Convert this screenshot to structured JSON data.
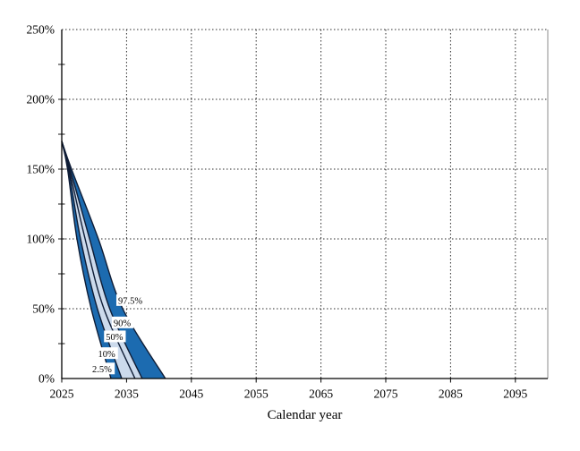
{
  "chart_data": {
    "type": "area",
    "subtype": "percentile-fan",
    "title": "",
    "xlabel": "Calendar year",
    "ylabel": "",
    "xlim": [
      2025,
      2100
    ],
    "ylim": [
      0,
      250
    ],
    "grid": "dotted",
    "legend_position": "none",
    "x_ticks": [
      2025,
      2035,
      2045,
      2055,
      2065,
      2075,
      2085,
      2095
    ],
    "x_tick_labels": [
      "2025",
      "2035",
      "2045",
      "2055",
      "2065",
      "2075",
      "2085",
      "2095"
    ],
    "y_ticks": [
      0,
      50,
      100,
      150,
      200,
      250
    ],
    "y_tick_labels": [
      "0%",
      "50%",
      "100%",
      "150%",
      "200%",
      "250%"
    ],
    "y_minor_tick_step": 25,
    "series": [
      {
        "name": "2.5%",
        "points": [
          [
            2025,
            170
          ],
          [
            2025.9,
            150
          ],
          [
            2027.35,
            100
          ],
          [
            2029.55,
            50
          ],
          [
            2032.6,
            0
          ]
        ],
        "label_at": [
          2029.7,
          7
        ]
      },
      {
        "name": "10%",
        "points": [
          [
            2025,
            170
          ],
          [
            2026.05,
            150
          ],
          [
            2027.9,
            100
          ],
          [
            2030.5,
            50
          ],
          [
            2034.25,
            0
          ]
        ],
        "label_at": [
          2030.6,
          18
        ]
      },
      {
        "name": "50%",
        "points": [
          [
            2025,
            170
          ],
          [
            2026.15,
            150
          ],
          [
            2028.6,
            100
          ],
          [
            2031.5,
            50
          ],
          [
            2036.3,
            0
          ]
        ],
        "label_at": [
          2031.8,
          30
        ]
      },
      {
        "name": "90%",
        "points": [
          [
            2025,
            170
          ],
          [
            2026.3,
            150
          ],
          [
            2029.3,
            100
          ],
          [
            2032.4,
            50
          ],
          [
            2037.4,
            0
          ]
        ],
        "label_at": [
          2033.0,
          40
        ]
      },
      {
        "name": "97.5%",
        "points": [
          [
            2025,
            170
          ],
          [
            2026.5,
            150
          ],
          [
            2030.65,
            100
          ],
          [
            2034.4,
            50
          ],
          [
            2041.0,
            0
          ]
        ],
        "label_at": [
          2033.7,
          56
        ]
      }
    ],
    "bands": [
      {
        "from": "2.5%",
        "to": "10%",
        "color_key": "dark"
      },
      {
        "from": "10%",
        "to": "90%",
        "color_key": "light"
      },
      {
        "from": "90%",
        "to": "97.5%",
        "color_key": "dark"
      }
    ],
    "colors": {
      "band_dark": "#1c6bb0",
      "band_light": "#ccdaec",
      "percentile_line": "#0f1d36",
      "grid": "#2b2b2b",
      "axis": "#000000",
      "right_frame": "#8c8c8c",
      "label_background": "#ffffff"
    }
  }
}
